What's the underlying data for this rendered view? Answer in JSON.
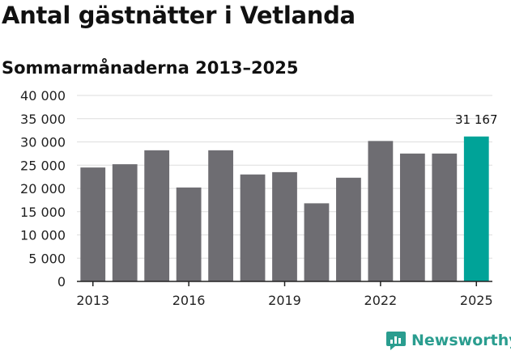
{
  "header": {
    "title": "Antal gästnätter i Vetlanda",
    "subtitle": "Sommarmånaderna 2013–2025"
  },
  "brand": {
    "name": "Newsworthy",
    "icon": "chart-icon",
    "color": "#2a9d8f"
  },
  "colors": {
    "bar": "#6e6d72",
    "highlight": "#00a398",
    "grid": "#dddddd",
    "axis": "#222222"
  },
  "chart_data": {
    "type": "bar",
    "categories": [
      "2013",
      "2014",
      "2015",
      "2016",
      "2017",
      "2018",
      "2019",
      "2020",
      "2021",
      "2022",
      "2023",
      "2024",
      "2025"
    ],
    "values": [
      24500,
      25200,
      28200,
      20200,
      28200,
      23000,
      23500,
      16800,
      22300,
      30200,
      27500,
      27500,
      31167
    ],
    "highlight_index": 12,
    "data_labels": [
      {
        "index": 12,
        "text": "31 167"
      }
    ],
    "xticks": [
      "2013",
      "2016",
      "2019",
      "2022",
      "2025"
    ],
    "yticks": [
      "0",
      "5 000",
      "10 000",
      "15 000",
      "20 000",
      "25 000",
      "30 000",
      "35 000",
      "40 000"
    ],
    "ylim": [
      0,
      40000
    ],
    "grid": true,
    "legend": "none"
  }
}
